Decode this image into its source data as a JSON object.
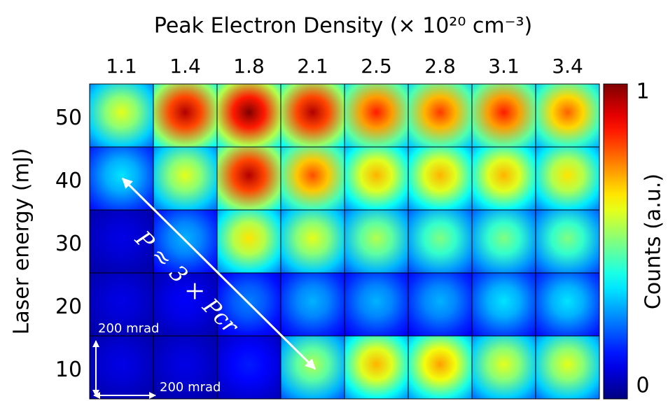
{
  "chart_data": {
    "type": "heatmap",
    "title": "Peak Electron Density (× 10²⁰ cm⁻³)",
    "ylabel": "Laser energy (mJ)",
    "colorbar_label": "Counts (a.u.)",
    "x": [
      "1.1",
      "1.4",
      "1.8",
      "2.1",
      "2.5",
      "2.8",
      "3.1",
      "3.4"
    ],
    "y": [
      "50",
      "40",
      "30",
      "20",
      "10"
    ],
    "values": [
      [
        0.6,
        0.95,
        1.0,
        0.95,
        0.85,
        0.82,
        0.85,
        0.78
      ],
      [
        0.35,
        0.6,
        0.95,
        0.8,
        0.7,
        0.7,
        0.7,
        0.65
      ],
      [
        0.1,
        0.3,
        0.65,
        0.6,
        0.55,
        0.5,
        0.5,
        0.5
      ],
      [
        0.1,
        0.12,
        0.25,
        0.3,
        0.3,
        0.3,
        0.35,
        0.35
      ],
      [
        0.1,
        0.1,
        0.15,
        0.55,
        0.7,
        0.72,
        0.6,
        0.6
      ]
    ],
    "clim": [
      0,
      1
    ],
    "cticks": [
      0,
      1
    ],
    "colormap": "jet",
    "annotations": [
      "P ≈ 3 × Pcr",
      "200 mrad",
      "200 mrad"
    ]
  }
}
